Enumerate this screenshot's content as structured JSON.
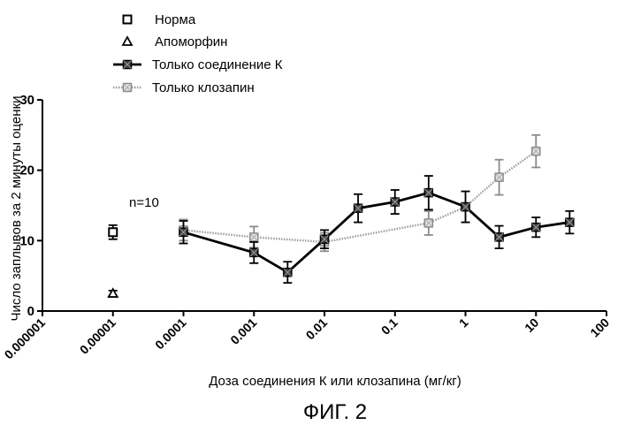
{
  "chart_data": {
    "type": "line",
    "x_scale": "log",
    "xlabel": "Доза соединения К или клозапина (мг/кг)",
    "ylabel": "Число заплывов за 2 минуты оценки",
    "xlim": [
      1e-06,
      100
    ],
    "ylim": [
      0,
      30
    ],
    "x_tick_labels": [
      "0.000001",
      "0.00001",
      "0.0001",
      "0.001",
      "0.01",
      "0.1",
      "1",
      "10",
      "100"
    ],
    "x_tick_values": [
      1e-06,
      1e-05,
      0.0001,
      0.001,
      0.01,
      0.1,
      1,
      10,
      100
    ],
    "y_tick_labels": [
      "0",
      "10",
      "20",
      "30"
    ],
    "y_tick_values": [
      0,
      10,
      20,
      30
    ],
    "grid": false,
    "legend_position": "top-left",
    "annotation": "n=10",
    "series": [
      {
        "name": "Норма",
        "marker": "open-square",
        "line": "none",
        "color": "#000000",
        "points": [
          {
            "x": 1e-05,
            "y": 11.2,
            "err": 1.0
          }
        ]
      },
      {
        "name": "Апоморфин",
        "marker": "open-triangle",
        "line": "none",
        "color": "#000000",
        "points": [
          {
            "x": 1e-05,
            "y": 2.5,
            "err": 0.4
          }
        ]
      },
      {
        "name": "Только соединение К",
        "marker": "filled-square",
        "line": "solid-thick",
        "color": "#000000",
        "points": [
          {
            "x": 0.0001,
            "y": 11.2,
            "err": 1.6
          },
          {
            "x": 0.001,
            "y": 8.3,
            "err": 1.5
          },
          {
            "x": 0.003,
            "y": 5.5,
            "err": 1.5
          },
          {
            "x": 0.01,
            "y": 10.2,
            "err": 1.3
          },
          {
            "x": 0.03,
            "y": 14.6,
            "err": 2.0
          },
          {
            "x": 0.1,
            "y": 15.5,
            "err": 1.7
          },
          {
            "x": 0.3,
            "y": 16.8,
            "err": 2.4
          },
          {
            "x": 1,
            "y": 14.8,
            "err": 2.2
          },
          {
            "x": 3,
            "y": 10.5,
            "err": 1.6
          },
          {
            "x": 10,
            "y": 11.9,
            "err": 1.4
          },
          {
            "x": 30,
            "y": 12.6,
            "err": 1.6
          }
        ]
      },
      {
        "name": "Только клозапин",
        "marker": "light-square",
        "line": "dotted-grey",
        "color": "#9a9a9a",
        "points": [
          {
            "x": 0.0001,
            "y": 11.5,
            "err": 1.5
          },
          {
            "x": 0.001,
            "y": 10.5,
            "err": 1.5
          },
          {
            "x": 0.01,
            "y": 9.8,
            "err": 1.3
          },
          {
            "x": 0.3,
            "y": 12.5,
            "err": 1.7
          },
          {
            "x": 1,
            "y": 14.8,
            "err": 2.2
          },
          {
            "x": 3,
            "y": 19.0,
            "err": 2.5
          },
          {
            "x": 10,
            "y": 22.7,
            "err": 2.3
          }
        ]
      }
    ]
  },
  "caption": "ФИГ. 2"
}
